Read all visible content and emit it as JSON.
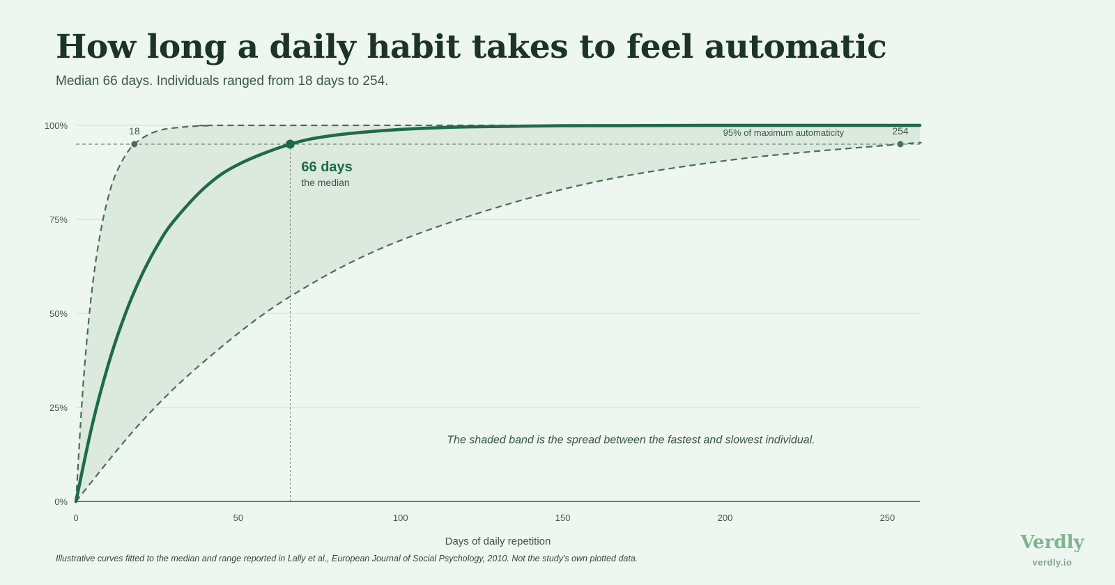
{
  "header": {
    "title": "How long a daily habit takes to feel automatic",
    "subtitle": "Median 66 days. Individuals ranged from 18 days to 254."
  },
  "chart_data": {
    "type": "line",
    "xlabel": "Days of daily repetition",
    "ylabel": "",
    "xlim": [
      0,
      260
    ],
    "ylim": [
      0,
      100
    ],
    "x_ticks": [
      0,
      50,
      100,
      150,
      200,
      250
    ],
    "x_tick_labels": [
      "0",
      "50",
      "100",
      "150",
      "200",
      "250"
    ],
    "y_ticks": [
      0,
      25,
      50,
      75,
      100
    ],
    "y_tick_labels": [
      "0%",
      "25%",
      "50%",
      "75%",
      "100%"
    ],
    "grid": true,
    "series": [
      {
        "role": "median",
        "style": "solid",
        "reaches_95_at": 66,
        "x": [
          0,
          5,
          10,
          15,
          20,
          25,
          30,
          40,
          50,
          66,
          80,
          100,
          120,
          150,
          200,
          260
        ],
        "y": [
          0,
          20.3,
          36.5,
          49.4,
          59.7,
          67.9,
          74.4,
          83.7,
          89.6,
          95.0,
          97.4,
          98.9,
          99.6,
          99.9,
          100,
          100
        ]
      },
      {
        "role": "fastest",
        "style": "dashed",
        "reaches_95_at": 18,
        "x": [
          0,
          2,
          4,
          6,
          8,
          10,
          12,
          15,
          18,
          22,
          26,
          30,
          40,
          60,
          260
        ],
        "y": [
          0,
          28.3,
          48.7,
          63.2,
          73.6,
          81.1,
          86.5,
          91.7,
          95.0,
          97.4,
          98.7,
          99.3,
          99.9,
          100,
          100
        ]
      },
      {
        "role": "slowest",
        "style": "dashed",
        "reaches_95_at": 254,
        "x": [
          0,
          20,
          40,
          66,
          100,
          150,
          200,
          254,
          260
        ],
        "y": [
          0,
          21.0,
          37.6,
          54.5,
          69.4,
          83.0,
          90.6,
          95.0,
          95.3
        ]
      }
    ],
    "reference_line": {
      "y": 95,
      "label": "95% of maximum automaticity"
    },
    "markers": [
      {
        "x": 18,
        "y": 95,
        "label": "18"
      },
      {
        "x": 66,
        "y": 95,
        "label": "66 days",
        "sublabel": "the median"
      },
      {
        "x": 254,
        "y": 95,
        "label": "254"
      }
    ],
    "band_note": "The shaded band is the spread between the fastest and slowest individual.",
    "colors": {
      "median": "#1e6b45",
      "range": "#4d6b5a",
      "band": "#dbe9df",
      "grid": "#c6e1cd",
      "axis": "#3d5748"
    }
  },
  "footer": {
    "source": "Illustrative curves fitted to the median and range reported in Lally et al., European Journal of Social Psychology, 2010. Not the study's own plotted data.",
    "brand": "Verdly",
    "url": "verdly.io"
  }
}
